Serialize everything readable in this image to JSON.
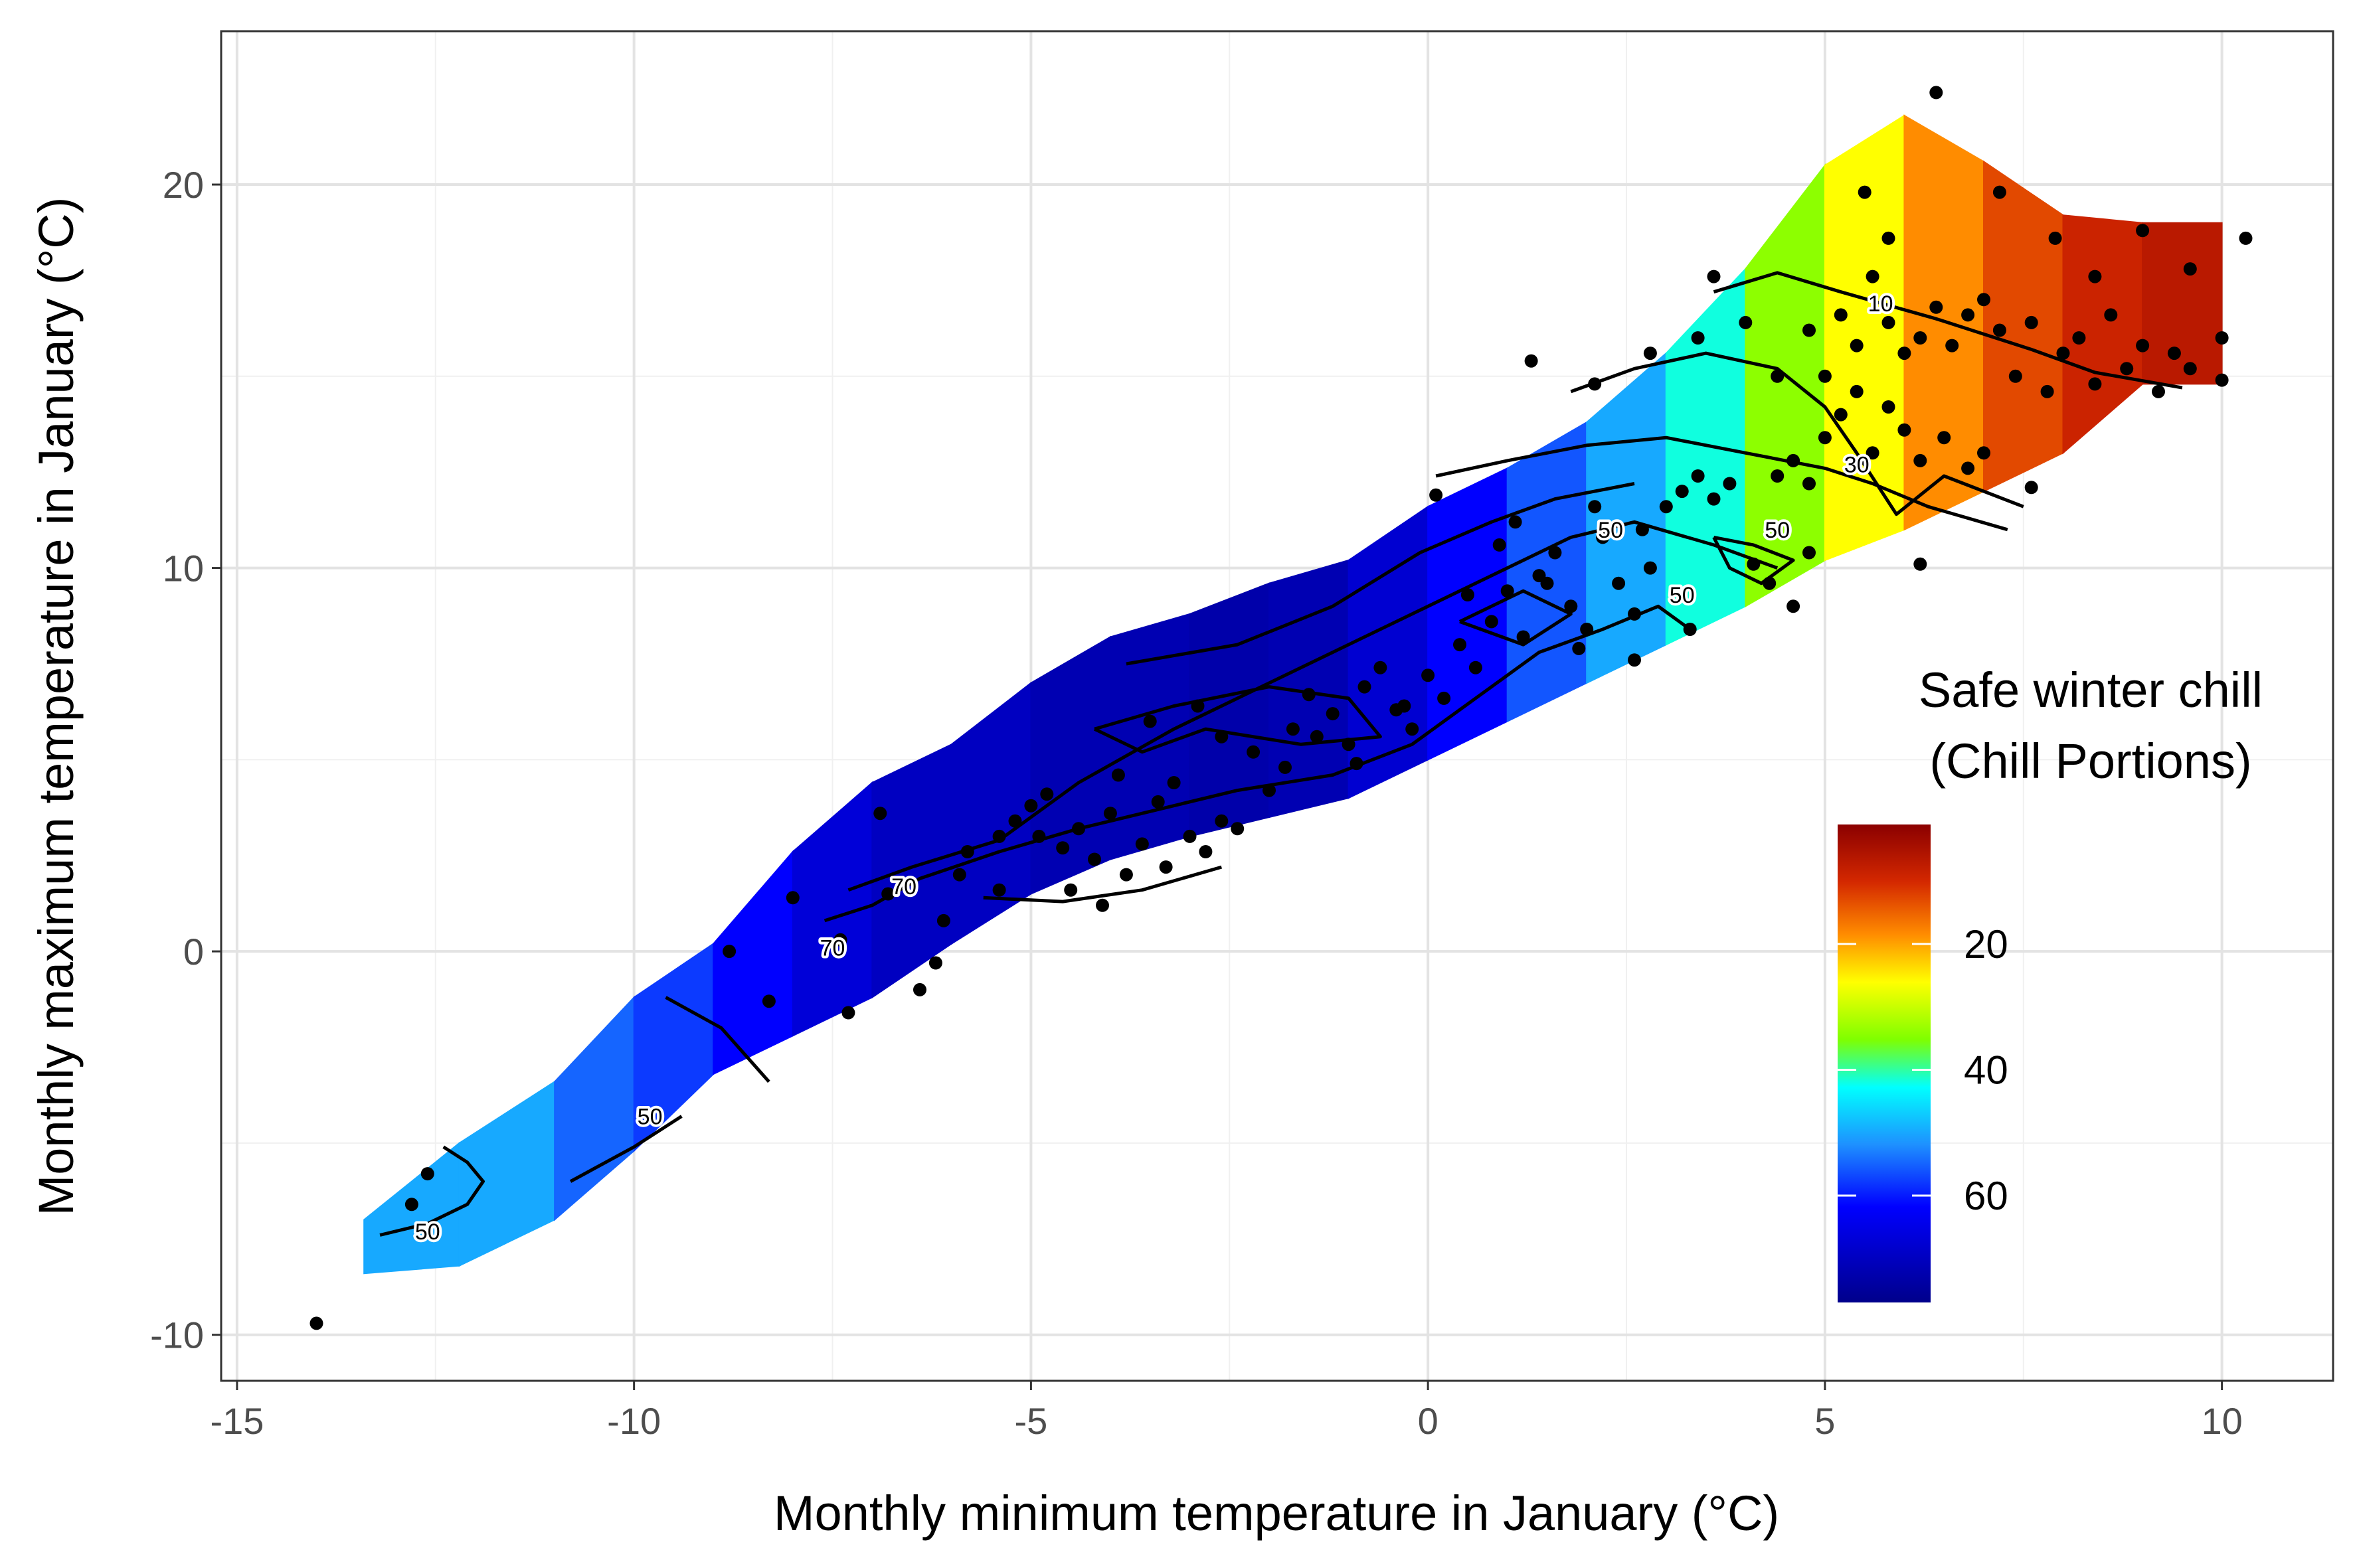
{
  "chart_data": {
    "type": "contour-heatmap-scatter",
    "xlabel": "Monthly minimum temperature in January (°C)",
    "ylabel": "Monthly maximum temperature in January (°C)",
    "xlim": [
      -15.2,
      11.4
    ],
    "ylim": [
      -11.2,
      24
    ],
    "x_ticks": [
      -15,
      -10,
      -5,
      0,
      5,
      10
    ],
    "x_tick_labels": [
      "-15",
      "-10",
      "-5",
      "0",
      "5",
      "10"
    ],
    "y_ticks": [
      -10,
      0,
      10,
      20
    ],
    "y_tick_labels": [
      "-10",
      "0",
      "10",
      "20"
    ],
    "grid": true,
    "legend": {
      "title_line1": "Safe winter chill",
      "title_line2": "(Chill Portions)",
      "placement": "right, inside plot",
      "range": [
        1,
        77
      ],
      "ticks": [
        20,
        40,
        60
      ],
      "tick_labels": [
        "20",
        "40",
        "60"
      ],
      "colors": [
        "#8b0000",
        "#ff4500",
        "#ffa500",
        "#ffff00",
        "#7fff00",
        "#00ffff",
        "#1e90ff",
        "#0000ff",
        "#00008b"
      ]
    },
    "surface_bands": [
      {
        "x_from": -13.4,
        "x_to": -12.2,
        "y_low": -8.4,
        "y_high": -7.0,
        "value": 50
      },
      {
        "x_from": -12.2,
        "x_to": -11.0,
        "y_low": -8.2,
        "y_high": -5.0,
        "value": 50
      },
      {
        "x_from": -11.0,
        "x_to": -10.0,
        "y_low": -7.0,
        "y_high": -3.4,
        "value": 55
      },
      {
        "x_from": -10.0,
        "x_to": -9.0,
        "y_low": -5.2,
        "y_high": -1.2,
        "value": 58
      },
      {
        "x_from": -9.0,
        "x_to": -8.0,
        "y_low": -3.2,
        "y_high": 0.2,
        "value": 62
      },
      {
        "x_from": -8.0,
        "x_to": -7.0,
        "y_low": -2.2,
        "y_high": 2.6,
        "value": 67
      },
      {
        "x_from": -7.0,
        "x_to": -6.0,
        "y_low": -1.2,
        "y_high": 4.4,
        "value": 70
      },
      {
        "x_from": -6.0,
        "x_to": -5.0,
        "y_low": 0.2,
        "y_high": 5.4,
        "value": 70
      },
      {
        "x_from": -5.0,
        "x_to": -4.0,
        "y_low": 1.5,
        "y_high": 7.0,
        "value": 72
      },
      {
        "x_from": -4.0,
        "x_to": -3.0,
        "y_low": 2.4,
        "y_high": 8.2,
        "value": 72
      },
      {
        "x_from": -3.0,
        "x_to": -2.0,
        "y_low": 3.0,
        "y_high": 8.8,
        "value": 73
      },
      {
        "x_from": -2.0,
        "x_to": -1.0,
        "y_low": 3.5,
        "y_high": 9.6,
        "value": 72
      },
      {
        "x_from": -1.0,
        "x_to": 0.0,
        "y_low": 4.0,
        "y_high": 10.2,
        "value": 68
      },
      {
        "x_from": 0.0,
        "x_to": 1.0,
        "y_low": 5.0,
        "y_high": 11.6,
        "value": 62
      },
      {
        "x_from": 1.0,
        "x_to": 2.0,
        "y_low": 6.0,
        "y_high": 12.6,
        "value": 56
      },
      {
        "x_from": 2.0,
        "x_to": 3.0,
        "y_low": 7.0,
        "y_high": 13.8,
        "value": 50
      },
      {
        "x_from": 3.0,
        "x_to": 4.0,
        "y_low": 8.0,
        "y_high": 15.6,
        "value": 42
      },
      {
        "x_from": 4.0,
        "x_to": 5.0,
        "y_low": 9.0,
        "y_high": 17.8,
        "value": 34
      },
      {
        "x_from": 5.0,
        "x_to": 6.0,
        "y_low": 10.2,
        "y_high": 20.5,
        "value": 26
      },
      {
        "x_from": 6.0,
        "x_to": 7.0,
        "y_low": 11.0,
        "y_high": 21.8,
        "value": 18
      },
      {
        "x_from": 7.0,
        "x_to": 8.0,
        "y_low": 12.0,
        "y_high": 20.6,
        "value": 12
      },
      {
        "x_from": 8.0,
        "x_to": 9.0,
        "y_low": 13.0,
        "y_high": 19.2,
        "value": 8
      },
      {
        "x_from": 9.0,
        "x_to": 10.0,
        "y_low": 14.8,
        "y_high": 19.0,
        "value": 6
      }
    ],
    "contours": [
      {
        "level": 10,
        "points": [
          [
            3.6,
            17.2
          ],
          [
            4.4,
            17.7
          ],
          [
            5.2,
            17.2
          ],
          [
            6.4,
            16.5
          ],
          [
            7.6,
            15.7
          ],
          [
            8.4,
            15.1
          ],
          [
            9.5,
            14.7
          ]
        ]
      },
      {
        "level": 30,
        "points": [
          [
            0.1,
            12.4
          ],
          [
            1.0,
            12.8
          ],
          [
            2.0,
            13.2
          ],
          [
            3.0,
            13.4
          ],
          [
            4.0,
            13.0
          ],
          [
            5.0,
            12.6
          ],
          [
            5.6,
            12.2
          ],
          [
            6.3,
            11.6
          ],
          [
            7.3,
            11.0
          ]
        ]
      },
      {
        "level": 30,
        "points": [
          [
            1.8,
            14.6
          ],
          [
            2.6,
            15.2
          ],
          [
            3.5,
            15.6
          ],
          [
            4.4,
            15.2
          ],
          [
            5.0,
            14.2
          ],
          [
            5.4,
            13.0
          ],
          [
            5.9,
            11.4
          ],
          [
            6.5,
            12.4
          ],
          [
            7.5,
            11.6
          ]
        ]
      },
      {
        "level": 50,
        "points": [
          [
            -7.3,
            1.6
          ],
          [
            -6.5,
            2.2
          ],
          [
            -5.4,
            2.9
          ],
          [
            -4.4,
            4.4
          ],
          [
            -3.2,
            5.8
          ],
          [
            -2.2,
            6.8
          ],
          [
            -1.2,
            7.8
          ],
          [
            -0.2,
            8.8
          ],
          [
            0.8,
            9.8
          ],
          [
            1.8,
            10.8
          ],
          [
            2.6,
            11.2
          ],
          [
            3.6,
            10.6
          ],
          [
            4.4,
            10.0
          ]
        ]
      },
      {
        "level": 50,
        "points": [
          [
            -3.8,
            7.5
          ],
          [
            -2.4,
            8.0
          ],
          [
            -1.2,
            9.0
          ],
          [
            -0.1,
            10.4
          ],
          [
            0.8,
            11.2
          ],
          [
            1.6,
            11.8
          ],
          [
            2.6,
            12.2
          ]
        ]
      },
      {
        "level": 50,
        "points": [
          [
            3.6,
            10.8
          ],
          [
            4.1,
            10.6
          ],
          [
            4.6,
            10.2
          ],
          [
            4.2,
            9.6
          ],
          [
            3.8,
            10.0
          ],
          [
            3.6,
            10.8
          ]
        ]
      },
      {
        "level": 50,
        "points": [
          [
            -10.8,
            -6.0
          ],
          [
            -10.0,
            -5.1
          ],
          [
            -9.4,
            -4.3
          ]
        ]
      },
      {
        "level": 50,
        "points": [
          [
            -9.6,
            -1.2
          ],
          [
            -8.9,
            -2.0
          ],
          [
            -8.3,
            -3.4
          ]
        ]
      },
      {
        "level": 50,
        "points": [
          [
            -13.2,
            -7.4
          ],
          [
            -12.6,
            -7.1
          ],
          [
            -12.1,
            -6.6
          ],
          [
            -11.9,
            -6.0
          ],
          [
            -12.1,
            -5.5
          ],
          [
            -12.4,
            -5.1
          ]
        ]
      },
      {
        "level": 70,
        "points": [
          [
            -7.6,
            0.8
          ],
          [
            -7.0,
            1.2
          ],
          [
            -6.4,
            1.9
          ],
          [
            -5.4,
            2.6
          ],
          [
            -4.4,
            3.2
          ],
          [
            -3.4,
            3.7
          ],
          [
            -2.4,
            4.2
          ],
          [
            -1.2,
            4.6
          ],
          [
            -0.2,
            5.4
          ],
          [
            0.6,
            6.6
          ],
          [
            1.4,
            7.8
          ],
          [
            2.2,
            8.4
          ],
          [
            2.9,
            9.0
          ],
          [
            3.3,
            8.4
          ]
        ]
      },
      {
        "level": 70,
        "points": [
          [
            -4.2,
            5.8
          ],
          [
            -3.2,
            6.4
          ],
          [
            -2.0,
            6.9
          ],
          [
            -1.0,
            6.6
          ],
          [
            -0.6,
            5.6
          ],
          [
            -1.6,
            5.4
          ],
          [
            -2.8,
            5.8
          ],
          [
            -3.6,
            5.2
          ],
          [
            -4.2,
            5.8
          ]
        ]
      },
      {
        "level": 70,
        "points": [
          [
            -5.6,
            1.4
          ],
          [
            -4.6,
            1.3
          ],
          [
            -3.6,
            1.6
          ],
          [
            -2.6,
            2.2
          ]
        ]
      },
      {
        "level": 70,
        "points": [
          [
            0.4,
            8.6
          ],
          [
            1.2,
            9.4
          ],
          [
            1.8,
            8.8
          ],
          [
            1.2,
            8.0
          ],
          [
            0.4,
            8.6
          ]
        ]
      }
    ],
    "contour_labels": [
      {
        "x": 5.7,
        "y": 16.9,
        "text": "10"
      },
      {
        "x": 5.4,
        "y": 12.7,
        "text": "30"
      },
      {
        "x": 2.3,
        "y": 11.0,
        "text": "50"
      },
      {
        "x": 4.4,
        "y": 11.0,
        "text": "50"
      },
      {
        "x": 3.2,
        "y": 9.3,
        "text": "50"
      },
      {
        "x": -9.8,
        "y": -4.3,
        "text": "50"
      },
      {
        "x": -12.6,
        "y": -7.3,
        "text": "50"
      },
      {
        "x": -6.6,
        "y": 1.7,
        "text": "70"
      },
      {
        "x": -7.5,
        "y": 0.1,
        "text": "70"
      }
    ],
    "points": [
      [
        -14.0,
        -9.7
      ],
      [
        -12.8,
        -6.6
      ],
      [
        -12.6,
        -5.8
      ],
      [
        -8.3,
        -1.3
      ],
      [
        -8.8,
        0.0
      ],
      [
        -8.0,
        1.4
      ],
      [
        -6.9,
        3.6
      ],
      [
        -7.4,
        0.3
      ],
      [
        -6.8,
        1.5
      ],
      [
        -6.2,
        -0.3
      ],
      [
        -6.4,
        -1.0
      ],
      [
        -7.3,
        -1.6
      ],
      [
        -5.8,
        2.6
      ],
      [
        -5.4,
        3.0
      ],
      [
        -5.2,
        3.4
      ],
      [
        -5.0,
        3.8
      ],
      [
        -4.8,
        4.1
      ],
      [
        -4.6,
        2.7
      ],
      [
        -4.4,
        3.2
      ],
      [
        -4.2,
        2.4
      ],
      [
        -4.0,
        3.6
      ],
      [
        -3.8,
        2.0
      ],
      [
        -3.6,
        2.8
      ],
      [
        -3.4,
        3.9
      ],
      [
        -3.2,
        4.4
      ],
      [
        -3.0,
        3.0
      ],
      [
        -2.8,
        2.6
      ],
      [
        -2.6,
        3.4
      ],
      [
        -4.9,
        3.0
      ],
      [
        -4.5,
        1.6
      ],
      [
        -3.9,
        4.6
      ],
      [
        -3.5,
        6.0
      ],
      [
        -2.9,
        6.4
      ],
      [
        -2.6,
        5.6
      ],
      [
        -2.2,
        5.2
      ],
      [
        -2.0,
        4.2
      ],
      [
        -1.7,
        5.8
      ],
      [
        -1.5,
        6.7
      ],
      [
        -1.2,
        6.2
      ],
      [
        -1.0,
        5.4
      ],
      [
        -0.8,
        6.9
      ],
      [
        -0.6,
        7.4
      ],
      [
        -0.4,
        6.3
      ],
      [
        -0.2,
        5.8
      ],
      [
        0.0,
        7.2
      ],
      [
        0.2,
        6.6
      ],
      [
        0.4,
        8.0
      ],
      [
        0.6,
        7.4
      ],
      [
        0.8,
        8.6
      ],
      [
        1.0,
        9.4
      ],
      [
        1.2,
        8.2
      ],
      [
        1.4,
        9.8
      ],
      [
        1.6,
        10.4
      ],
      [
        1.8,
        9.0
      ],
      [
        2.0,
        8.4
      ],
      [
        2.2,
        10.8
      ],
      [
        2.4,
        9.6
      ],
      [
        2.6,
        8.8
      ],
      [
        2.8,
        10.0
      ],
      [
        0.1,
        11.9
      ],
      [
        0.9,
        10.6
      ],
      [
        1.1,
        11.2
      ],
      [
        2.1,
        11.6
      ],
      [
        2.7,
        11.0
      ],
      [
        3.0,
        11.6
      ],
      [
        3.2,
        12.0
      ],
      [
        3.4,
        12.4
      ],
      [
        3.6,
        11.8
      ],
      [
        3.8,
        12.2
      ],
      [
        3.3,
        8.4
      ],
      [
        4.1,
        10.1
      ],
      [
        4.3,
        9.6
      ],
      [
        4.6,
        9.0
      ],
      [
        4.8,
        10.4
      ],
      [
        4.4,
        12.4
      ],
      [
        4.6,
        12.8
      ],
      [
        4.8,
        12.2
      ],
      [
        5.0,
        13.4
      ],
      [
        5.2,
        14.0
      ],
      [
        5.4,
        14.6
      ],
      [
        5.6,
        13.0
      ],
      [
        5.8,
        14.2
      ],
      [
        6.0,
        13.6
      ],
      [
        6.2,
        12.8
      ],
      [
        6.5,
        13.4
      ],
      [
        6.8,
        12.6
      ],
      [
        7.0,
        13.0
      ],
      [
        6.2,
        10.1
      ],
      [
        1.3,
        15.4
      ],
      [
        2.1,
        14.8
      ],
      [
        2.8,
        15.6
      ],
      [
        3.4,
        16.0
      ],
      [
        3.6,
        17.6
      ],
      [
        4.0,
        16.4
      ],
      [
        4.4,
        15.0
      ],
      [
        4.8,
        16.2
      ],
      [
        5.0,
        15.0
      ],
      [
        5.2,
        16.6
      ],
      [
        5.4,
        15.8
      ],
      [
        5.6,
        17.6
      ],
      [
        5.8,
        16.4
      ],
      [
        6.0,
        15.6
      ],
      [
        6.2,
        16.0
      ],
      [
        6.4,
        16.8
      ],
      [
        6.6,
        15.8
      ],
      [
        6.8,
        16.6
      ],
      [
        7.0,
        17.0
      ],
      [
        7.2,
        16.2
      ],
      [
        7.4,
        15.0
      ],
      [
        7.6,
        16.4
      ],
      [
        7.8,
        14.6
      ],
      [
        8.0,
        15.6
      ],
      [
        8.2,
        16.0
      ],
      [
        8.4,
        14.8
      ],
      [
        8.6,
        16.6
      ],
      [
        8.8,
        15.2
      ],
      [
        9.0,
        15.8
      ],
      [
        9.2,
        14.6
      ],
      [
        9.4,
        15.6
      ],
      [
        9.6,
        15.2
      ],
      [
        10.0,
        16.0
      ],
      [
        10.0,
        14.9
      ],
      [
        10.3,
        18.6
      ],
      [
        6.4,
        22.4
      ],
      [
        5.5,
        19.8
      ],
      [
        7.2,
        19.8
      ],
      [
        7.9,
        18.6
      ],
      [
        8.4,
        17.6
      ],
      [
        9.0,
        18.8
      ],
      [
        9.6,
        17.8
      ],
      [
        7.6,
        12.1
      ],
      [
        5.8,
        18.6
      ],
      [
        -1.4,
        5.6
      ],
      [
        -2.4,
        3.2
      ],
      [
        -3.3,
        2.2
      ],
      [
        -4.1,
        1.2
      ],
      [
        -1.8,
        4.8
      ],
      [
        -0.9,
        4.9
      ],
      [
        -0.3,
        6.4
      ],
      [
        0.5,
        9.3
      ],
      [
        1.5,
        9.6
      ],
      [
        1.9,
        7.9
      ],
      [
        2.6,
        7.6
      ],
      [
        -5.4,
        1.6
      ],
      [
        -6.1,
        0.8
      ],
      [
        -5.9,
        2.0
      ]
    ]
  }
}
